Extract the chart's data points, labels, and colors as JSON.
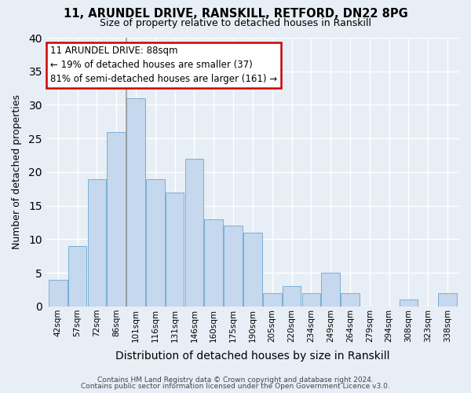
{
  "title": "11, ARUNDEL DRIVE, RANSKILL, RETFORD, DN22 8PG",
  "subtitle": "Size of property relative to detached houses in Ranskill",
  "xlabel": "Distribution of detached houses by size in Ranskill",
  "ylabel": "Number of detached properties",
  "bar_color": "#c5d8ee",
  "bar_edge_color": "#7aafd4",
  "background_color": "#e8eef5",
  "grid_color": "#ffffff",
  "bins": [
    "42sqm",
    "57sqm",
    "72sqm",
    "86sqm",
    "101sqm",
    "116sqm",
    "131sqm",
    "146sqm",
    "160sqm",
    "175sqm",
    "190sqm",
    "205sqm",
    "220sqm",
    "234sqm",
    "249sqm",
    "264sqm",
    "279sqm",
    "294sqm",
    "308sqm",
    "323sqm",
    "338sqm"
  ],
  "values": [
    4,
    9,
    19,
    26,
    31,
    19,
    17,
    22,
    13,
    12,
    11,
    2,
    3,
    2,
    5,
    2,
    0,
    0,
    1,
    0,
    2
  ],
  "ylim": [
    0,
    40
  ],
  "yticks": [
    0,
    5,
    10,
    15,
    20,
    25,
    30,
    35,
    40
  ],
  "annotation_title": "11 ARUNDEL DRIVE: 88sqm",
  "annotation_line1": "← 19% of detached houses are smaller (37)",
  "annotation_line2": "81% of semi-detached houses are larger (161) →",
  "annotation_box_color": "#ffffff",
  "annotation_box_edge": "#cc0000",
  "vline_color": "#888888",
  "footer1": "Contains HM Land Registry data © Crown copyright and database right 2024.",
  "footer2": "Contains public sector information licensed under the Open Government Licence v3.0."
}
